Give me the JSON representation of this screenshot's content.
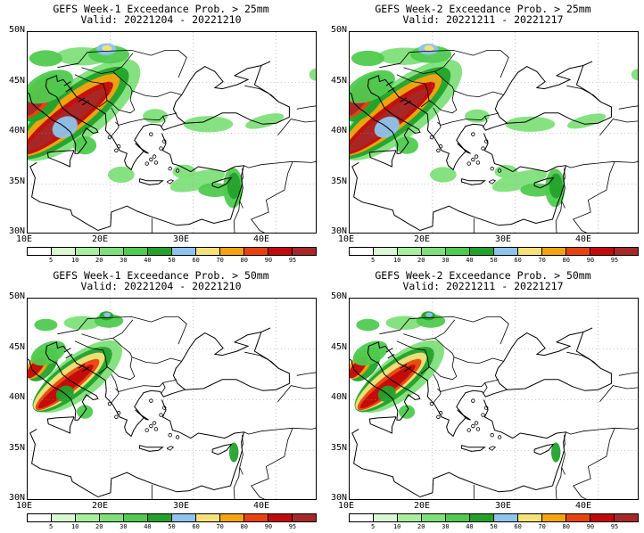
{
  "panels": [
    {
      "title": "GEFS Week-1 Exceedance Prob. > 25mm",
      "valid": "Valid: 20221204 - 20221210",
      "intensity": 1.0
    },
    {
      "title": "GEFS Week-2 Exceedance Prob. > 25mm",
      "valid": "Valid: 20221211 - 20221217",
      "intensity": 0.95
    },
    {
      "title": "GEFS Week-1 Exceedance Prob. > 50mm",
      "valid": "Valid: 20221204 - 20221210",
      "intensity": 0.55
    },
    {
      "title": "GEFS Week-2 Exceedance Prob. > 50mm",
      "valid": "Valid: 20221211 - 20221217",
      "intensity": 0.5
    }
  ],
  "lat_labels": [
    "50N",
    "45N",
    "40N",
    "35N",
    "30N"
  ],
  "lon_labels": [
    "10E",
    "20E",
    "30E",
    "40E"
  ],
  "colorbar": {
    "labels": [
      "5",
      "10",
      "20",
      "30",
      "40",
      "50",
      "60",
      "70",
      "80",
      "90",
      "95"
    ],
    "colors": [
      "#ffffff",
      "#d9f7d2",
      "#a8ee9c",
      "#7fe07a",
      "#4fcb4f",
      "#22a22a",
      "#8dc4ec",
      "#f7e27a",
      "#f5a30f",
      "#e8420f",
      "#c20a0a",
      "#a82828"
    ]
  },
  "map_extent": {
    "lon": [
      10,
      45
    ],
    "lat": [
      30,
      50
    ]
  }
}
